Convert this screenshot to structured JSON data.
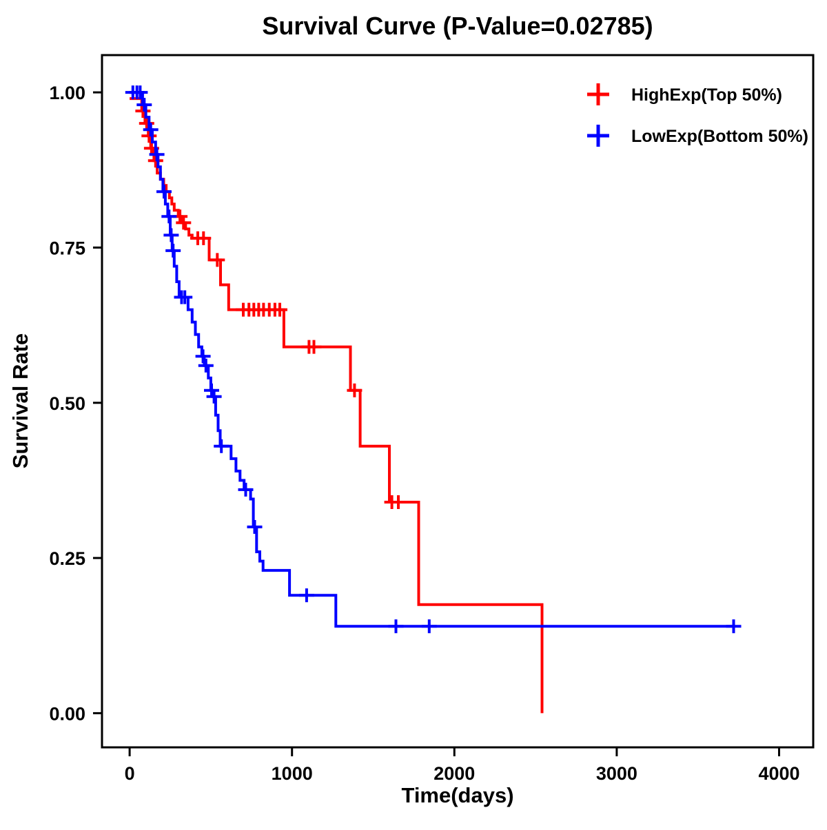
{
  "chart_data": {
    "type": "line",
    "subtype": "kaplan-meier-step",
    "title": "Survival Curve (P-Value=0.02785)",
    "xlabel": "Time(days)",
    "ylabel": "Survival Rate",
    "grid": false,
    "legend_position": "top-right-inside",
    "xlim": [
      -170,
      4210
    ],
    "ylim": [
      -0.055,
      1.06
    ],
    "xticks": [
      0,
      1000,
      2000,
      3000,
      4000
    ],
    "xtick_labels": [
      "0",
      "1000",
      "2000",
      "3000",
      "4000"
    ],
    "yticks": [
      0,
      0.25,
      0.5,
      0.75,
      1.0
    ],
    "ytick_labels": [
      "0.00",
      "0.25",
      "0.50",
      "0.75",
      "1.00"
    ],
    "series": [
      {
        "name": "HighExp(Top 50%)",
        "color": "#FF0000",
        "steps": [
          [
            0,
            0.99
          ],
          [
            75,
            0.97
          ],
          [
            95,
            0.95
          ],
          [
            115,
            0.93
          ],
          [
            130,
            0.91
          ],
          [
            150,
            0.89
          ],
          [
            170,
            0.87
          ],
          [
            190,
            0.86
          ],
          [
            210,
            0.85
          ],
          [
            225,
            0.84
          ],
          [
            245,
            0.83
          ],
          [
            260,
            0.82
          ],
          [
            275,
            0.81
          ],
          [
            300,
            0.8
          ],
          [
            320,
            0.79
          ],
          [
            345,
            0.78
          ],
          [
            365,
            0.77
          ],
          [
            385,
            0.765
          ],
          [
            490,
            0.73
          ],
          [
            560,
            0.69
          ],
          [
            610,
            0.65
          ],
          [
            950,
            0.59
          ],
          [
            1360,
            0.52
          ],
          [
            1420,
            0.43
          ],
          [
            1600,
            0.34
          ],
          [
            1780,
            0.175
          ],
          [
            2540,
            0.0
          ]
        ],
        "censor_marks": [
          [
            82,
            0.97
          ],
          [
            105,
            0.95
          ],
          [
            120,
            0.93
          ],
          [
            135,
            0.91
          ],
          [
            160,
            0.89
          ],
          [
            310,
            0.8
          ],
          [
            332,
            0.79
          ],
          [
            420,
            0.765
          ],
          [
            455,
            0.765
          ],
          [
            540,
            0.73
          ],
          [
            700,
            0.65
          ],
          [
            735,
            0.65
          ],
          [
            765,
            0.65
          ],
          [
            795,
            0.65
          ],
          [
            825,
            0.65
          ],
          [
            860,
            0.65
          ],
          [
            895,
            0.65
          ],
          [
            925,
            0.65
          ],
          [
            1105,
            0.59
          ],
          [
            1135,
            0.59
          ],
          [
            1385,
            0.52
          ],
          [
            1615,
            0.34
          ],
          [
            1655,
            0.34
          ]
        ]
      },
      {
        "name": "LowExp(Bottom 50%)",
        "color": "#0000FF",
        "steps": [
          [
            0,
            1.0
          ],
          [
            80,
            0.98
          ],
          [
            100,
            0.96
          ],
          [
            120,
            0.94
          ],
          [
            140,
            0.92
          ],
          [
            160,
            0.9
          ],
          [
            175,
            0.88
          ],
          [
            190,
            0.86
          ],
          [
            205,
            0.84
          ],
          [
            220,
            0.82
          ],
          [
            235,
            0.8
          ],
          [
            250,
            0.77
          ],
          [
            262,
            0.745
          ],
          [
            275,
            0.72
          ],
          [
            290,
            0.695
          ],
          [
            305,
            0.67
          ],
          [
            360,
            0.65
          ],
          [
            385,
            0.63
          ],
          [
            405,
            0.61
          ],
          [
            425,
            0.59
          ],
          [
            445,
            0.575
          ],
          [
            460,
            0.56
          ],
          [
            485,
            0.54
          ],
          [
            500,
            0.52
          ],
          [
            512,
            0.51
          ],
          [
            530,
            0.48
          ],
          [
            545,
            0.455
          ],
          [
            558,
            0.43
          ],
          [
            625,
            0.41
          ],
          [
            655,
            0.39
          ],
          [
            680,
            0.375
          ],
          [
            705,
            0.36
          ],
          [
            745,
            0.345
          ],
          [
            762,
            0.3
          ],
          [
            782,
            0.26
          ],
          [
            802,
            0.245
          ],
          [
            822,
            0.23
          ],
          [
            985,
            0.19
          ],
          [
            1270,
            0.14
          ],
          [
            3720,
            0.14
          ]
        ],
        "censor_marks": [
          [
            20,
            1.0
          ],
          [
            45,
            1.0
          ],
          [
            65,
            1.0
          ],
          [
            90,
            0.98
          ],
          [
            130,
            0.94
          ],
          [
            168,
            0.9
          ],
          [
            212,
            0.84
          ],
          [
            243,
            0.8
          ],
          [
            256,
            0.77
          ],
          [
            268,
            0.745
          ],
          [
            320,
            0.67
          ],
          [
            340,
            0.67
          ],
          [
            452,
            0.575
          ],
          [
            470,
            0.56
          ],
          [
            505,
            0.52
          ],
          [
            520,
            0.51
          ],
          [
            565,
            0.43
          ],
          [
            715,
            0.36
          ],
          [
            770,
            0.3
          ],
          [
            1090,
            0.19
          ],
          [
            1640,
            0.14
          ],
          [
            1845,
            0.14
          ],
          [
            3720,
            0.14
          ]
        ]
      }
    ]
  }
}
